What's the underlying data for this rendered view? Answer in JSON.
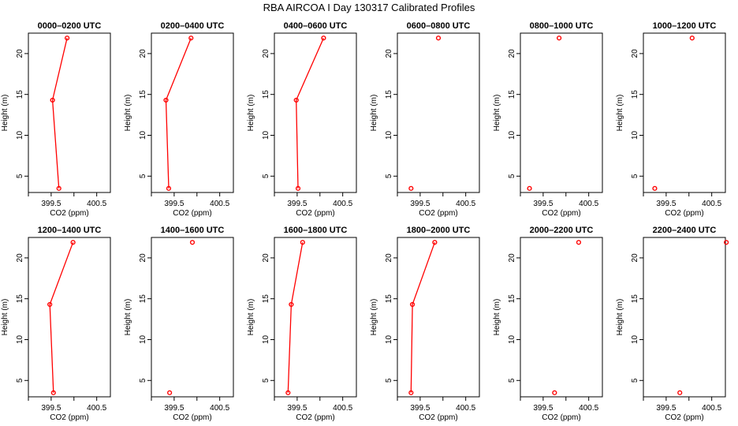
{
  "figure": {
    "title": "RBA AIRCOA I  Day 130317  Calibrated Profiles",
    "xlabel": "CO2 (ppm)",
    "ylabel": "Height (m)",
    "line_color": "#ff0000",
    "x_ticks": [
      "399.5",
      "400.5"
    ],
    "y_ticks": [
      "5",
      "10",
      "15",
      "20"
    ]
  },
  "chart_data": [
    {
      "type": "line",
      "title": "0000–0200 UTC",
      "xlim": [
        399.0,
        400.8
      ],
      "ylim": [
        3,
        22.5
      ],
      "x": [
        399.67,
        399.53,
        399.85
      ],
      "y": [
        3.5,
        14.3,
        21.9
      ]
    },
    {
      "type": "line",
      "title": "0200–0400 UTC",
      "xlim": [
        399.0,
        400.8
      ],
      "ylim": [
        3,
        22.5
      ],
      "x": [
        399.38,
        399.32,
        399.87
      ],
      "y": [
        3.5,
        14.3,
        21.9
      ]
    },
    {
      "type": "line",
      "title": "0400–0600 UTC",
      "xlim": [
        399.0,
        400.8
      ],
      "ylim": [
        3,
        22.5
      ],
      "x": [
        399.52,
        399.48,
        400.08
      ],
      "y": [
        3.5,
        14.3,
        21.9
      ]
    },
    {
      "type": "scatter",
      "title": "0600–0800 UTC",
      "xlim": [
        399.0,
        400.8
      ],
      "ylim": [
        3,
        22.5
      ],
      "x": [
        399.3,
        399.9
      ],
      "y": [
        3.5,
        21.9
      ]
    },
    {
      "type": "scatter",
      "title": "0800–1000 UTC",
      "xlim": [
        399.0,
        400.8
      ],
      "ylim": [
        3,
        22.5
      ],
      "x": [
        399.2,
        399.85
      ],
      "y": [
        3.5,
        21.9
      ]
    },
    {
      "type": "scatter",
      "title": "1000–1200 UTC",
      "xlim": [
        399.0,
        400.8
      ],
      "ylim": [
        3,
        22.5
      ],
      "x": [
        399.25,
        400.07
      ],
      "y": [
        3.5,
        21.9
      ]
    },
    {
      "type": "line",
      "title": "1200–1400 UTC",
      "xlim": [
        399.0,
        400.8
      ],
      "ylim": [
        3,
        22.5
      ],
      "x": [
        399.55,
        399.47,
        399.98
      ],
      "y": [
        3.5,
        14.3,
        21.9
      ]
    },
    {
      "type": "scatter",
      "title": "1400–1600 UTC",
      "xlim": [
        399.0,
        400.8
      ],
      "ylim": [
        3,
        22.5
      ],
      "x": [
        399.4,
        399.9
      ],
      "y": [
        3.5,
        21.9
      ]
    },
    {
      "type": "line",
      "title": "1600–1800 UTC",
      "xlim": [
        399.0,
        400.8
      ],
      "ylim": [
        3,
        22.5
      ],
      "x": [
        399.3,
        399.37,
        399.62
      ],
      "y": [
        3.5,
        14.3,
        21.9
      ]
    },
    {
      "type": "line",
      "title": "1800–2000 UTC",
      "xlim": [
        399.0,
        400.8
      ],
      "ylim": [
        3,
        22.5
      ],
      "x": [
        399.3,
        399.33,
        399.82
      ],
      "y": [
        3.5,
        14.3,
        21.9
      ]
    },
    {
      "type": "scatter",
      "title": "2000–2200 UTC",
      "xlim": [
        399.0,
        400.8
      ],
      "ylim": [
        3,
        22.5
      ],
      "x": [
        399.75,
        400.28
      ],
      "y": [
        3.5,
        21.9
      ]
    },
    {
      "type": "scatter",
      "title": "2200–2400 UTC",
      "xlim": [
        399.0,
        400.8
      ],
      "ylim": [
        3,
        22.5
      ],
      "x": [
        399.8,
        400.82
      ],
      "y": [
        3.5,
        21.9
      ]
    }
  ]
}
